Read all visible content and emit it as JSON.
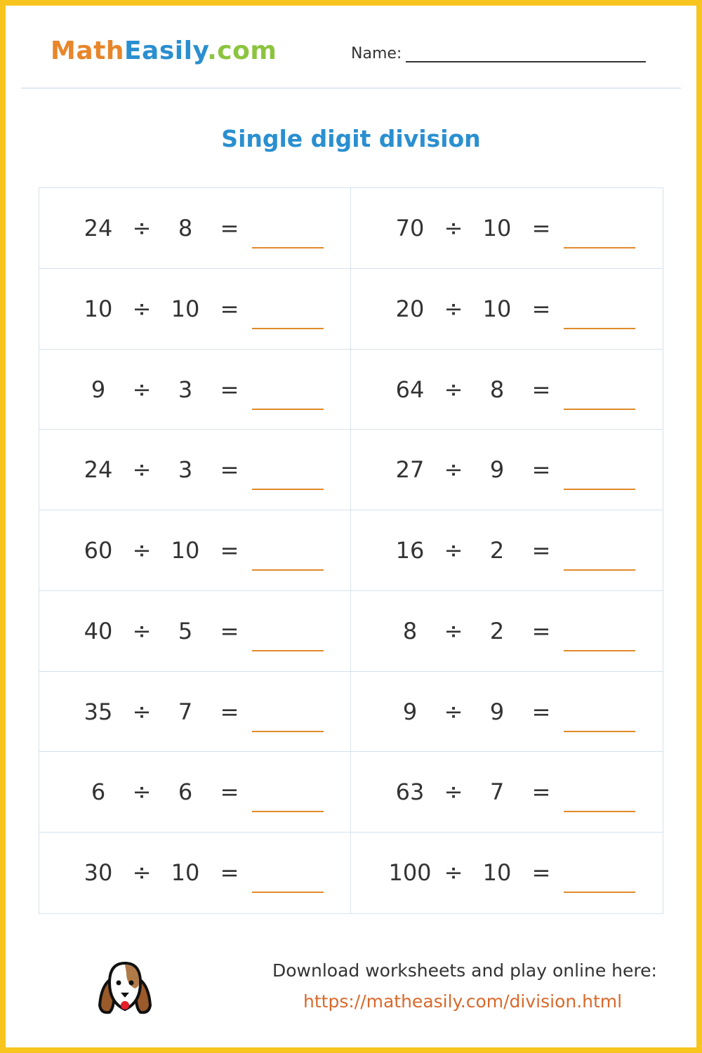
{
  "header": {
    "logo_part1": "Math",
    "logo_part2": "Easily",
    "logo_part3": ".com",
    "name_label": "Name:"
  },
  "title": "Single digit division",
  "operator": "÷",
  "equals": "=",
  "problems": [
    {
      "a": "24",
      "b": "8"
    },
    {
      "a": "70",
      "b": "10"
    },
    {
      "a": "10",
      "b": "10"
    },
    {
      "a": "20",
      "b": "10"
    },
    {
      "a": "9",
      "b": "3"
    },
    {
      "a": "64",
      "b": "8"
    },
    {
      "a": "24",
      "b": "3"
    },
    {
      "a": "27",
      "b": "9"
    },
    {
      "a": "60",
      "b": "10"
    },
    {
      "a": "16",
      "b": "2"
    },
    {
      "a": "40",
      "b": "5"
    },
    {
      "a": "8",
      "b": "2"
    },
    {
      "a": "35",
      "b": "7"
    },
    {
      "a": "9",
      "b": "9"
    },
    {
      "a": "6",
      "b": "6"
    },
    {
      "a": "63",
      "b": "7"
    },
    {
      "a": "30",
      "b": "10"
    },
    {
      "a": "100",
      "b": "10"
    }
  ],
  "footer": {
    "text": "Download worksheets and play online here:",
    "link": "https://matheasily.com/division.html",
    "icon": "dog-icon"
  },
  "colors": {
    "border": "#f7c51e",
    "title": "#2a8fd0",
    "answer_line": "#e08a2a",
    "link": "#d9692b"
  }
}
